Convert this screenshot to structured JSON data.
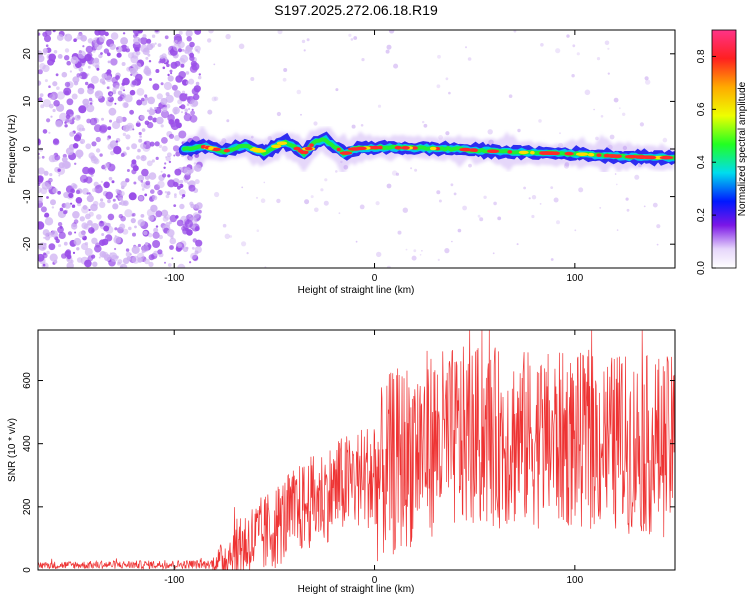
{
  "title": "S197.2025.272.06.18.R19",
  "colors": {
    "snr_line": "#ee3333",
    "noise": "#9a4ee8",
    "noise_light": "#cfb2f2",
    "frame": "#000000"
  },
  "chart_data": [
    {
      "type": "heatmap",
      "name": "spectrogram",
      "xlabel": "Height of straight line (km)",
      "ylabel": "Frequency (Hz)",
      "xlim": [
        -168,
        150
      ],
      "ylim": [
        -25,
        25
      ],
      "xticks": [
        -100,
        0,
        100
      ],
      "yticks": [
        -20,
        -10,
        0,
        10,
        20
      ],
      "noise_region_x": [
        -168,
        -87
      ],
      "signal_start_x": -95,
      "ridge": [
        {
          "x": -95,
          "y": 0.0
        },
        {
          "x": -85,
          "y": 0.5
        },
        {
          "x": -75,
          "y": -0.5
        },
        {
          "x": -65,
          "y": 0.8
        },
        {
          "x": -55,
          "y": -0.8
        },
        {
          "x": -45,
          "y": 1.5
        },
        {
          "x": -40,
          "y": 0.5
        },
        {
          "x": -35,
          "y": -1.0
        },
        {
          "x": -30,
          "y": 1.5
        },
        {
          "x": -25,
          "y": 2.0
        },
        {
          "x": -20,
          "y": 0.5
        },
        {
          "x": -15,
          "y": -1.0
        },
        {
          "x": -10,
          "y": 0.0
        },
        {
          "x": -5,
          "y": 0.2
        },
        {
          "x": 0,
          "y": 0.3
        },
        {
          "x": 10,
          "y": 0.3
        },
        {
          "x": 20,
          "y": 0.2
        },
        {
          "x": 40,
          "y": 0.0
        },
        {
          "x": 60,
          "y": -0.5
        },
        {
          "x": 80,
          "y": -0.8
        },
        {
          "x": 100,
          "y": -1.0
        },
        {
          "x": 120,
          "y": -1.5
        },
        {
          "x": 140,
          "y": -1.8
        },
        {
          "x": 150,
          "y": -1.8
        }
      ],
      "colorbar": {
        "label": "Normalized spectral amplitude",
        "range": [
          0,
          0.9
        ],
        "ticks": [
          "0.0",
          "0.2",
          "0.4",
          "0.6",
          "0.8"
        ]
      }
    },
    {
      "type": "line",
      "name": "snr",
      "xlabel": "Height of straight line (km)",
      "ylabel": "SNR (10 * v/v)",
      "xlim": [
        -168,
        150
      ],
      "ylim": [
        0,
        760
      ],
      "xticks": [
        -100,
        0,
        100
      ],
      "yticks": [
        0,
        200,
        400,
        600
      ],
      "envelope": [
        {
          "x": -168,
          "base": 15,
          "amp": 12
        },
        {
          "x": -82,
          "base": 18,
          "amp": 14
        },
        {
          "x": -75,
          "base": 40,
          "amp": 60
        },
        {
          "x": -65,
          "base": 80,
          "amp": 120
        },
        {
          "x": -55,
          "base": 110,
          "amp": 130
        },
        {
          "x": -45,
          "base": 160,
          "amp": 140
        },
        {
          "x": -30,
          "base": 220,
          "amp": 150
        },
        {
          "x": -15,
          "base": 270,
          "amp": 160
        },
        {
          "x": -3,
          "base": 300,
          "amp": 170
        },
        {
          "x": 0,
          "base": 280,
          "amp": 260
        },
        {
          "x": 8,
          "base": 330,
          "amp": 300
        },
        {
          "x": 25,
          "base": 400,
          "amp": 300
        },
        {
          "x": 50,
          "base": 420,
          "amp": 290
        },
        {
          "x": 100,
          "base": 410,
          "amp": 280
        },
        {
          "x": 150,
          "base": 390,
          "amp": 290
        }
      ]
    }
  ]
}
